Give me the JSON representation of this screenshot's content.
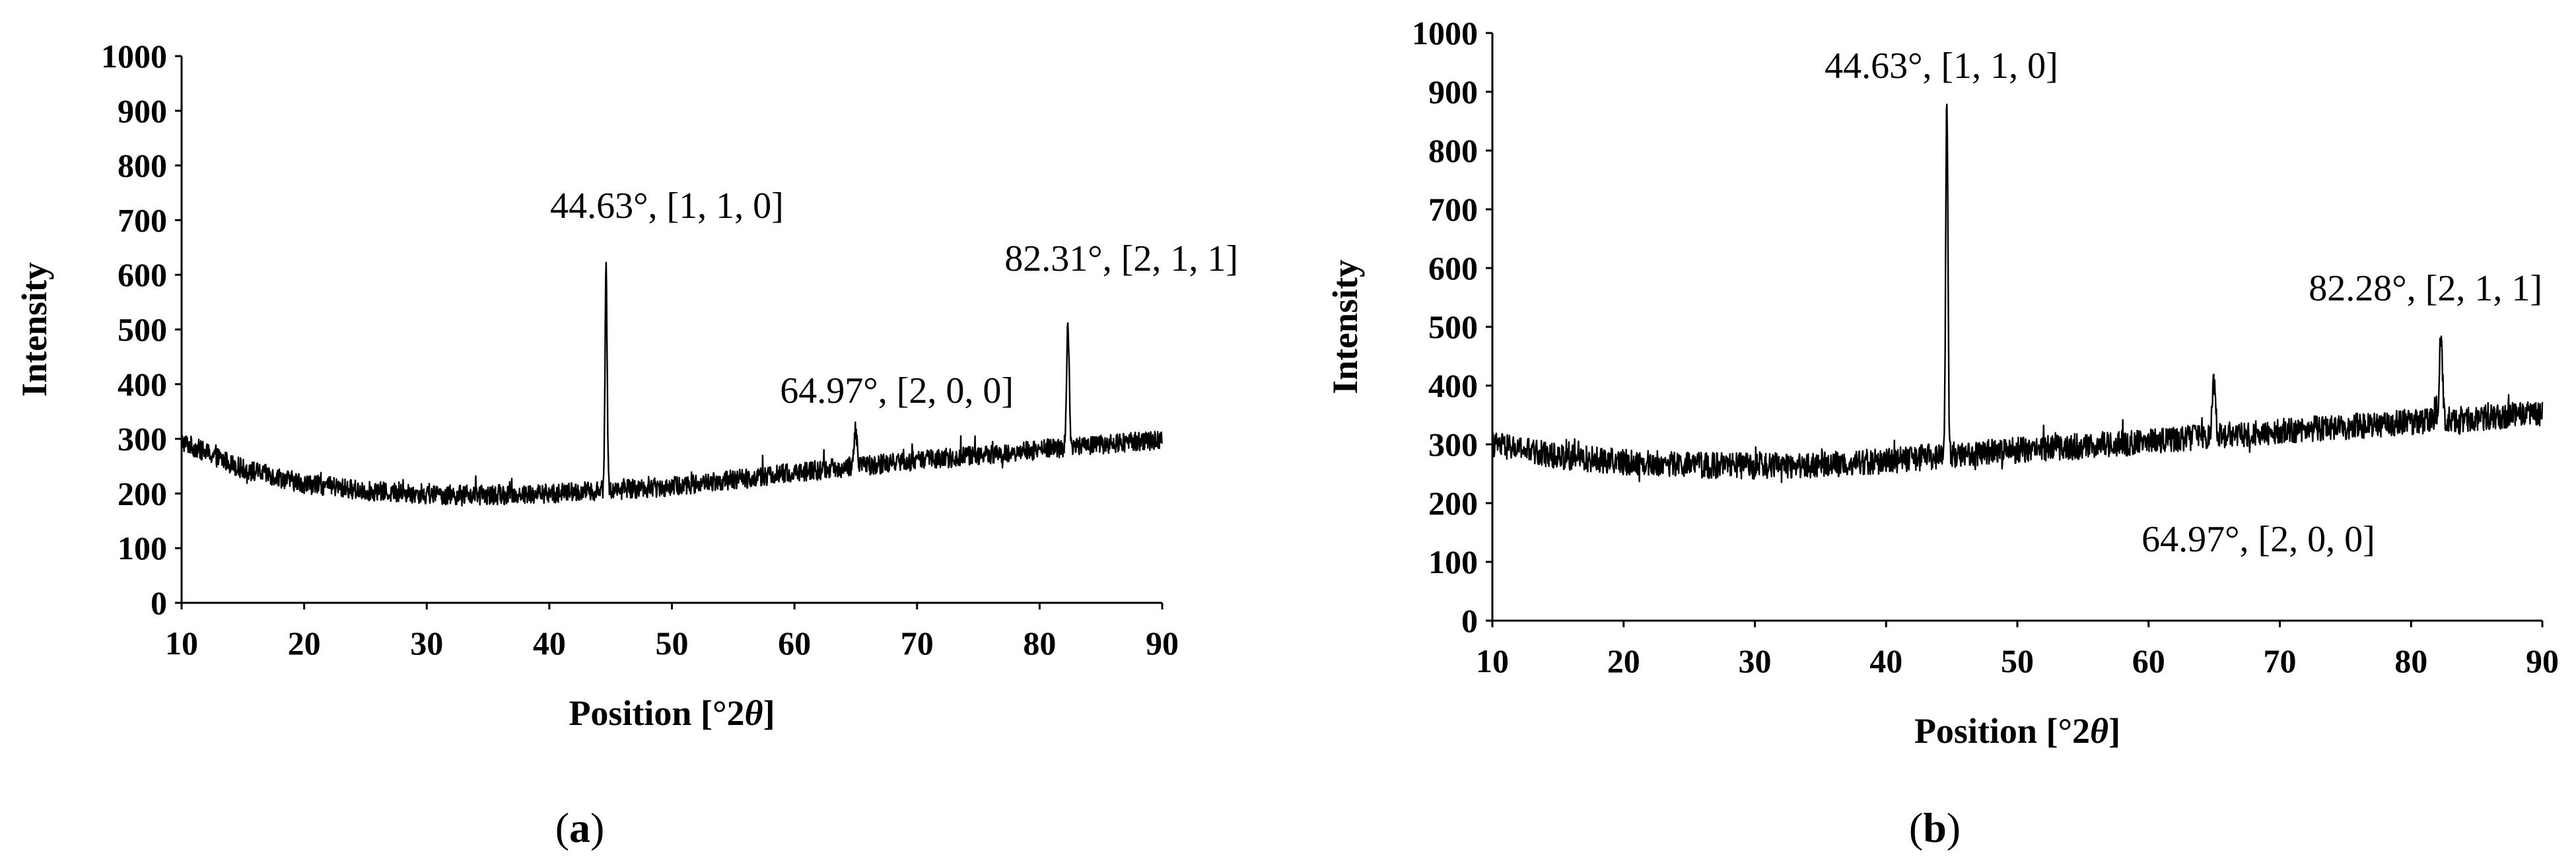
{
  "figure": {
    "panels": [
      {
        "label_parts": [
          "(",
          "a",
          ")"
        ]
      },
      {
        "label_parts": [
          "(",
          "b",
          ")"
        ]
      }
    ]
  },
  "chart_data": [
    {
      "type": "line",
      "panel": "a",
      "xlabel": "Position [°2θ]",
      "xlabel_parts": [
        "Position [°2",
        "θ",
        "]"
      ],
      "ylabel": "Intensity",
      "xlim": [
        10,
        90
      ],
      "ylim": [
        0,
        1000
      ],
      "xticks": [
        10,
        20,
        30,
        40,
        50,
        60,
        70,
        80,
        90
      ],
      "yticks": [
        0,
        100,
        200,
        300,
        400,
        500,
        600,
        700,
        800,
        900,
        1000
      ],
      "grid": false,
      "legend": "none",
      "color": "#000000",
      "baseline": [
        [
          10,
          295
        ],
        [
          15,
          245
        ],
        [
          20,
          218
        ],
        [
          25,
          205
        ],
        [
          30,
          198
        ],
        [
          35,
          197
        ],
        [
          40,
          200
        ],
        [
          45,
          206
        ],
        [
          50,
          213
        ],
        [
          55,
          225
        ],
        [
          60,
          238
        ],
        [
          65,
          250
        ],
        [
          70,
          260
        ],
        [
          75,
          270
        ],
        [
          80,
          280
        ],
        [
          85,
          290
        ],
        [
          90,
          298
        ]
      ],
      "noise_amplitude": 18,
      "peaks": [
        {
          "x": 44.63,
          "y": 615,
          "width": 0.12
        },
        {
          "x": 64.97,
          "y": 320,
          "width": 0.18
        },
        {
          "x": 82.31,
          "y": 510,
          "width": 0.15
        }
      ],
      "annotations": [
        {
          "text": "44.63°, [1, 1, 0]",
          "x": 44.63,
          "y": 700,
          "anchor": "end-ish"
        },
        {
          "text": "64.97°, [2, 0, 0]",
          "x": 64.97,
          "y": 375,
          "anchor": "right"
        },
        {
          "text": "82.31°, [2, 1, 1]",
          "x": 82.31,
          "y": 610,
          "anchor": "right"
        }
      ]
    },
    {
      "type": "line",
      "panel": "b",
      "xlabel": "Position [°2θ]",
      "xlabel_parts": [
        "Position [°2",
        "θ",
        "]"
      ],
      "ylabel": "Intensity",
      "xlim": [
        10,
        90
      ],
      "ylim": [
        0,
        1000
      ],
      "xticks": [
        10,
        20,
        30,
        40,
        50,
        60,
        70,
        80,
        90
      ],
      "yticks": [
        0,
        100,
        200,
        300,
        400,
        500,
        600,
        700,
        800,
        900,
        1000
      ],
      "grid": false,
      "legend": "none",
      "color": "#000000",
      "baseline": [
        [
          10,
          300
        ],
        [
          15,
          280
        ],
        [
          20,
          270
        ],
        [
          25,
          265
        ],
        [
          30,
          263
        ],
        [
          35,
          265
        ],
        [
          40,
          272
        ],
        [
          45,
          282
        ],
        [
          50,
          290
        ],
        [
          55,
          297
        ],
        [
          60,
          305
        ],
        [
          65,
          315
        ],
        [
          70,
          322
        ],
        [
          75,
          330
        ],
        [
          80,
          338
        ],
        [
          85,
          345
        ],
        [
          90,
          352
        ]
      ],
      "noise_amplitude": 22,
      "peaks": [
        {
          "x": 44.63,
          "y": 885,
          "width": 0.12
        },
        {
          "x": 64.97,
          "y": 410,
          "width": 0.18
        },
        {
          "x": 82.28,
          "y": 500,
          "width": 0.15
        }
      ],
      "annotations": [
        {
          "text": "44.63°, [1, 1, 0]",
          "x": 44.63,
          "y": 940,
          "anchor": "center"
        },
        {
          "text": "64.97°, [2, 0, 0]",
          "x": 64.97,
          "y": 150,
          "anchor": "center"
        },
        {
          "text": "82.28°, [2, 1, 1]",
          "x": 82.28,
          "y": 555,
          "anchor": "center"
        }
      ]
    }
  ]
}
